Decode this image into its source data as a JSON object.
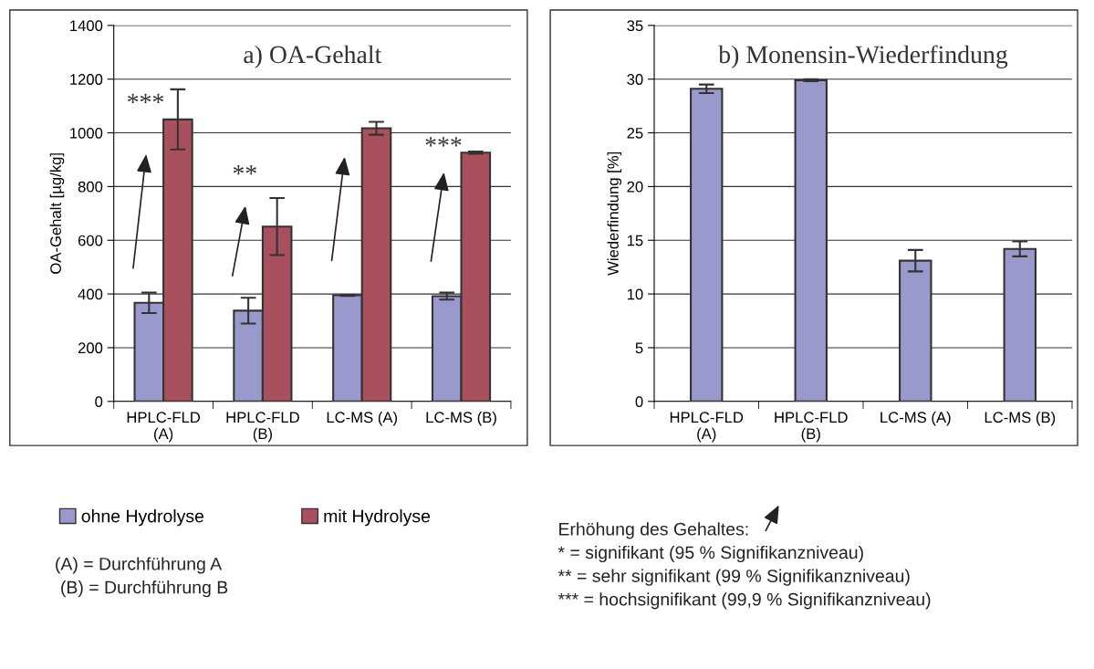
{
  "chart_data": [
    {
      "type": "bar",
      "title": "a) OA-Gehalt",
      "ylabel": "OA-Gehalt [µg/kg]",
      "categories": [
        "HPLC-FLD\n(A)",
        "HPLC-FLD\n(B)",
        "LC-MS (A)",
        "LC-MS (B)"
      ],
      "series": [
        {
          "name": "ohne Hydrolyse",
          "color": "#9999cc",
          "values": [
            367,
            338,
            395,
            392
          ],
          "errors": [
            38,
            48,
            2,
            13
          ]
        },
        {
          "name": "mit Hydrolyse",
          "color": "#a8505e",
          "values": [
            1050,
            651,
            1017,
            926
          ],
          "errors": [
            112,
            106,
            24,
            4
          ]
        }
      ],
      "ylim": [
        0,
        1400
      ],
      "yticks": [
        0,
        200,
        400,
        600,
        800,
        1000,
        1200,
        1400
      ],
      "grid": "y",
      "legend": "bottom",
      "annotations": [
        "***",
        "**",
        "***",
        "(A) = Durchführung A",
        "(B) = Durchführung B",
        "Erhöhung des Gehaltes:",
        "* = signifikant (95 % Signifikanzniveau)",
        "** = sehr signifikant (99 % Signifikanzniveau)",
        "*** = hochsignifikant (99,9 % Signifikanzniveau)"
      ]
    },
    {
      "type": "bar",
      "title": "b) Monensin-Wiederfindung",
      "ylabel": "Wiederfindung [%]",
      "categories": [
        "HPLC-FLD\n(A)",
        "HPLC-FLD\n(B)",
        "LC-MS (A)",
        "LC-MS (B)"
      ],
      "series": [
        {
          "color": "#9999cc",
          "values": [
            29.1,
            29.9,
            13.1,
            14.2
          ],
          "errors": [
            0.4,
            0.1,
            1,
            0.7
          ]
        }
      ],
      "ylim": [
        0,
        35
      ],
      "yticks": [
        0,
        5,
        10,
        15,
        20,
        25,
        30,
        35
      ],
      "grid": "y",
      "legend": false
    }
  ]
}
